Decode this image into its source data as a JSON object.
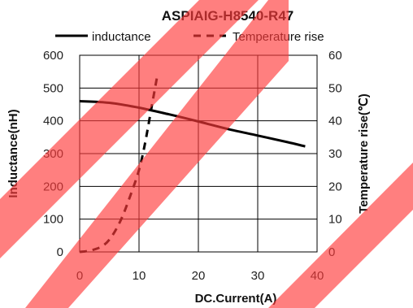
{
  "chart_data": {
    "type": "line",
    "title": "ASPIAIG-H8540-R47",
    "xlabel": "DC.Current(A)",
    "ylabel": "Inductance(nH)",
    "y2label": "Temperature rise(℃)",
    "xlim": [
      0,
      40
    ],
    "ylim": [
      0,
      600
    ],
    "y2lim": [
      0,
      60
    ],
    "x_ticks": [
      "0",
      "10",
      "20",
      "30",
      "40"
    ],
    "y_ticks": [
      "0",
      "100",
      "200",
      "300",
      "400",
      "500",
      "600"
    ],
    "y2_ticks": [
      "0",
      "10",
      "20",
      "30",
      "40",
      "50",
      "60"
    ],
    "grid": true,
    "legend_position": "top",
    "series": [
      {
        "name": "inductance",
        "axis": "left",
        "style": "solid",
        "color": "#000000",
        "x": [
          0,
          5,
          10,
          15,
          20,
          25,
          30,
          35,
          38
        ],
        "y": [
          460,
          455,
          440,
          420,
          398,
          375,
          355,
          335,
          322
        ]
      },
      {
        "name": "Temperature rise",
        "axis": "right",
        "style": "dashed",
        "color": "#000000",
        "x": [
          0,
          2,
          4,
          5.5,
          7,
          8.5,
          10,
          11,
          12,
          13
        ],
        "y": [
          0,
          0.5,
          2,
          5,
          10,
          17,
          25,
          33,
          43,
          53
        ]
      }
    ]
  },
  "overlay": {
    "stripe_color": "#ff3b3b",
    "stripe_opacity": 0.65
  }
}
